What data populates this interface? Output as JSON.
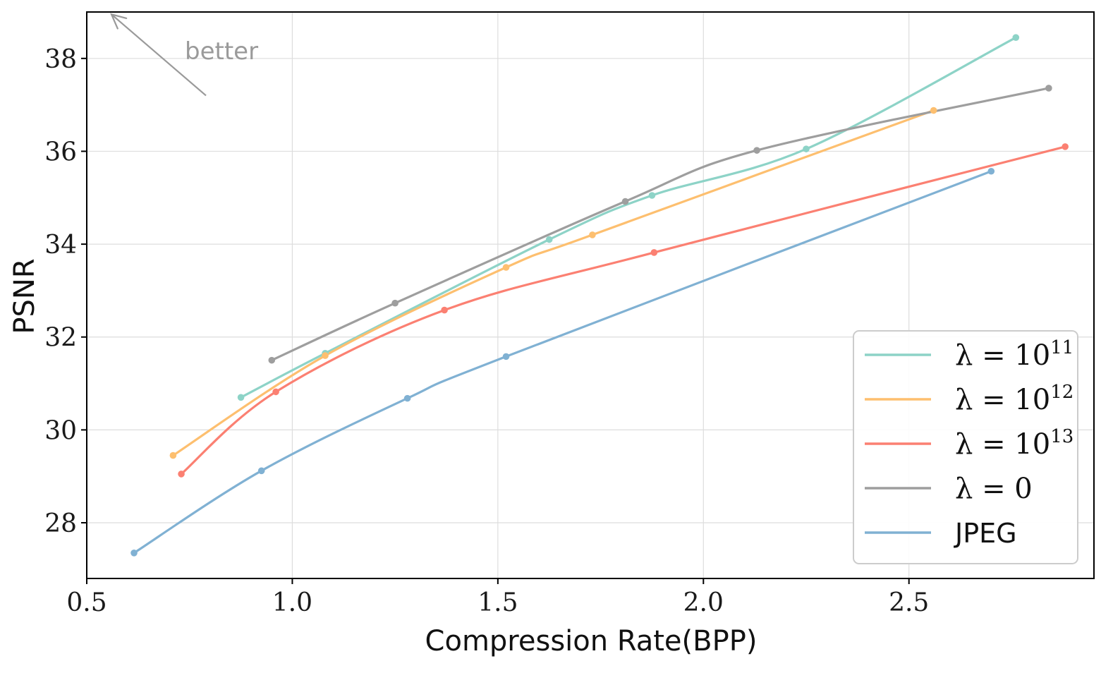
{
  "chart_data": {
    "type": "line",
    "title": "",
    "xlabel": "Compression Rate(BPP)",
    "ylabel": "PSNR",
    "xlim": [
      0.5,
      2.95
    ],
    "ylim": [
      26.8,
      39.0
    ],
    "xticks": [
      0.5,
      1.0,
      1.5,
      2.0,
      2.5
    ],
    "xtick_labels": [
      "0.5",
      "1.0",
      "1.5",
      "2.0",
      "2.5"
    ],
    "yticks": [
      28,
      30,
      32,
      34,
      36,
      38
    ],
    "ytick_labels": [
      "28",
      "30",
      "32",
      "34",
      "36",
      "38"
    ],
    "grid": true,
    "legend_position": "bottom-right",
    "annotation": {
      "text": "better",
      "arrow_from": [
        0.79,
        37.2
      ],
      "arrow_to": [
        0.56,
        38.95
      ]
    },
    "series": [
      {
        "name": "λ = 10^11",
        "label_base": "λ = 10",
        "label_exp": "11",
        "color": "#8dd3c7",
        "x": [
          0.875,
          1.08,
          1.625,
          1.875,
          2.25,
          2.76
        ],
        "y": [
          30.7,
          31.65,
          34.1,
          35.05,
          36.05,
          38.45
        ]
      },
      {
        "name": "λ = 10^12",
        "label_base": "λ = 10",
        "label_exp": "12",
        "color": "#fdbf6f",
        "x": [
          0.71,
          1.08,
          1.52,
          1.73,
          2.56
        ],
        "y": [
          29.45,
          31.6,
          33.5,
          34.2,
          36.88
        ]
      },
      {
        "name": "λ = 10^13",
        "label_base": "λ = 10",
        "label_exp": "13",
        "color": "#fb8072",
        "x": [
          0.73,
          0.96,
          1.37,
          1.88,
          2.88
        ],
        "y": [
          29.05,
          30.82,
          32.58,
          33.82,
          36.1
        ]
      },
      {
        "name": "λ = 0",
        "label_base": "λ = 0",
        "label_exp": "",
        "color": "#9e9e9e",
        "x": [
          0.95,
          1.25,
          1.81,
          2.13,
          2.84
        ],
        "y": [
          31.5,
          32.73,
          34.92,
          36.02,
          37.36
        ]
      },
      {
        "name": "JPEG",
        "label_base": "JPEG",
        "label_exp": "",
        "color": "#80b1d3",
        "x": [
          0.615,
          0.925,
          1.28,
          1.52,
          2.7
        ],
        "y": [
          27.35,
          29.12,
          30.68,
          31.58,
          35.57
        ]
      }
    ]
  }
}
